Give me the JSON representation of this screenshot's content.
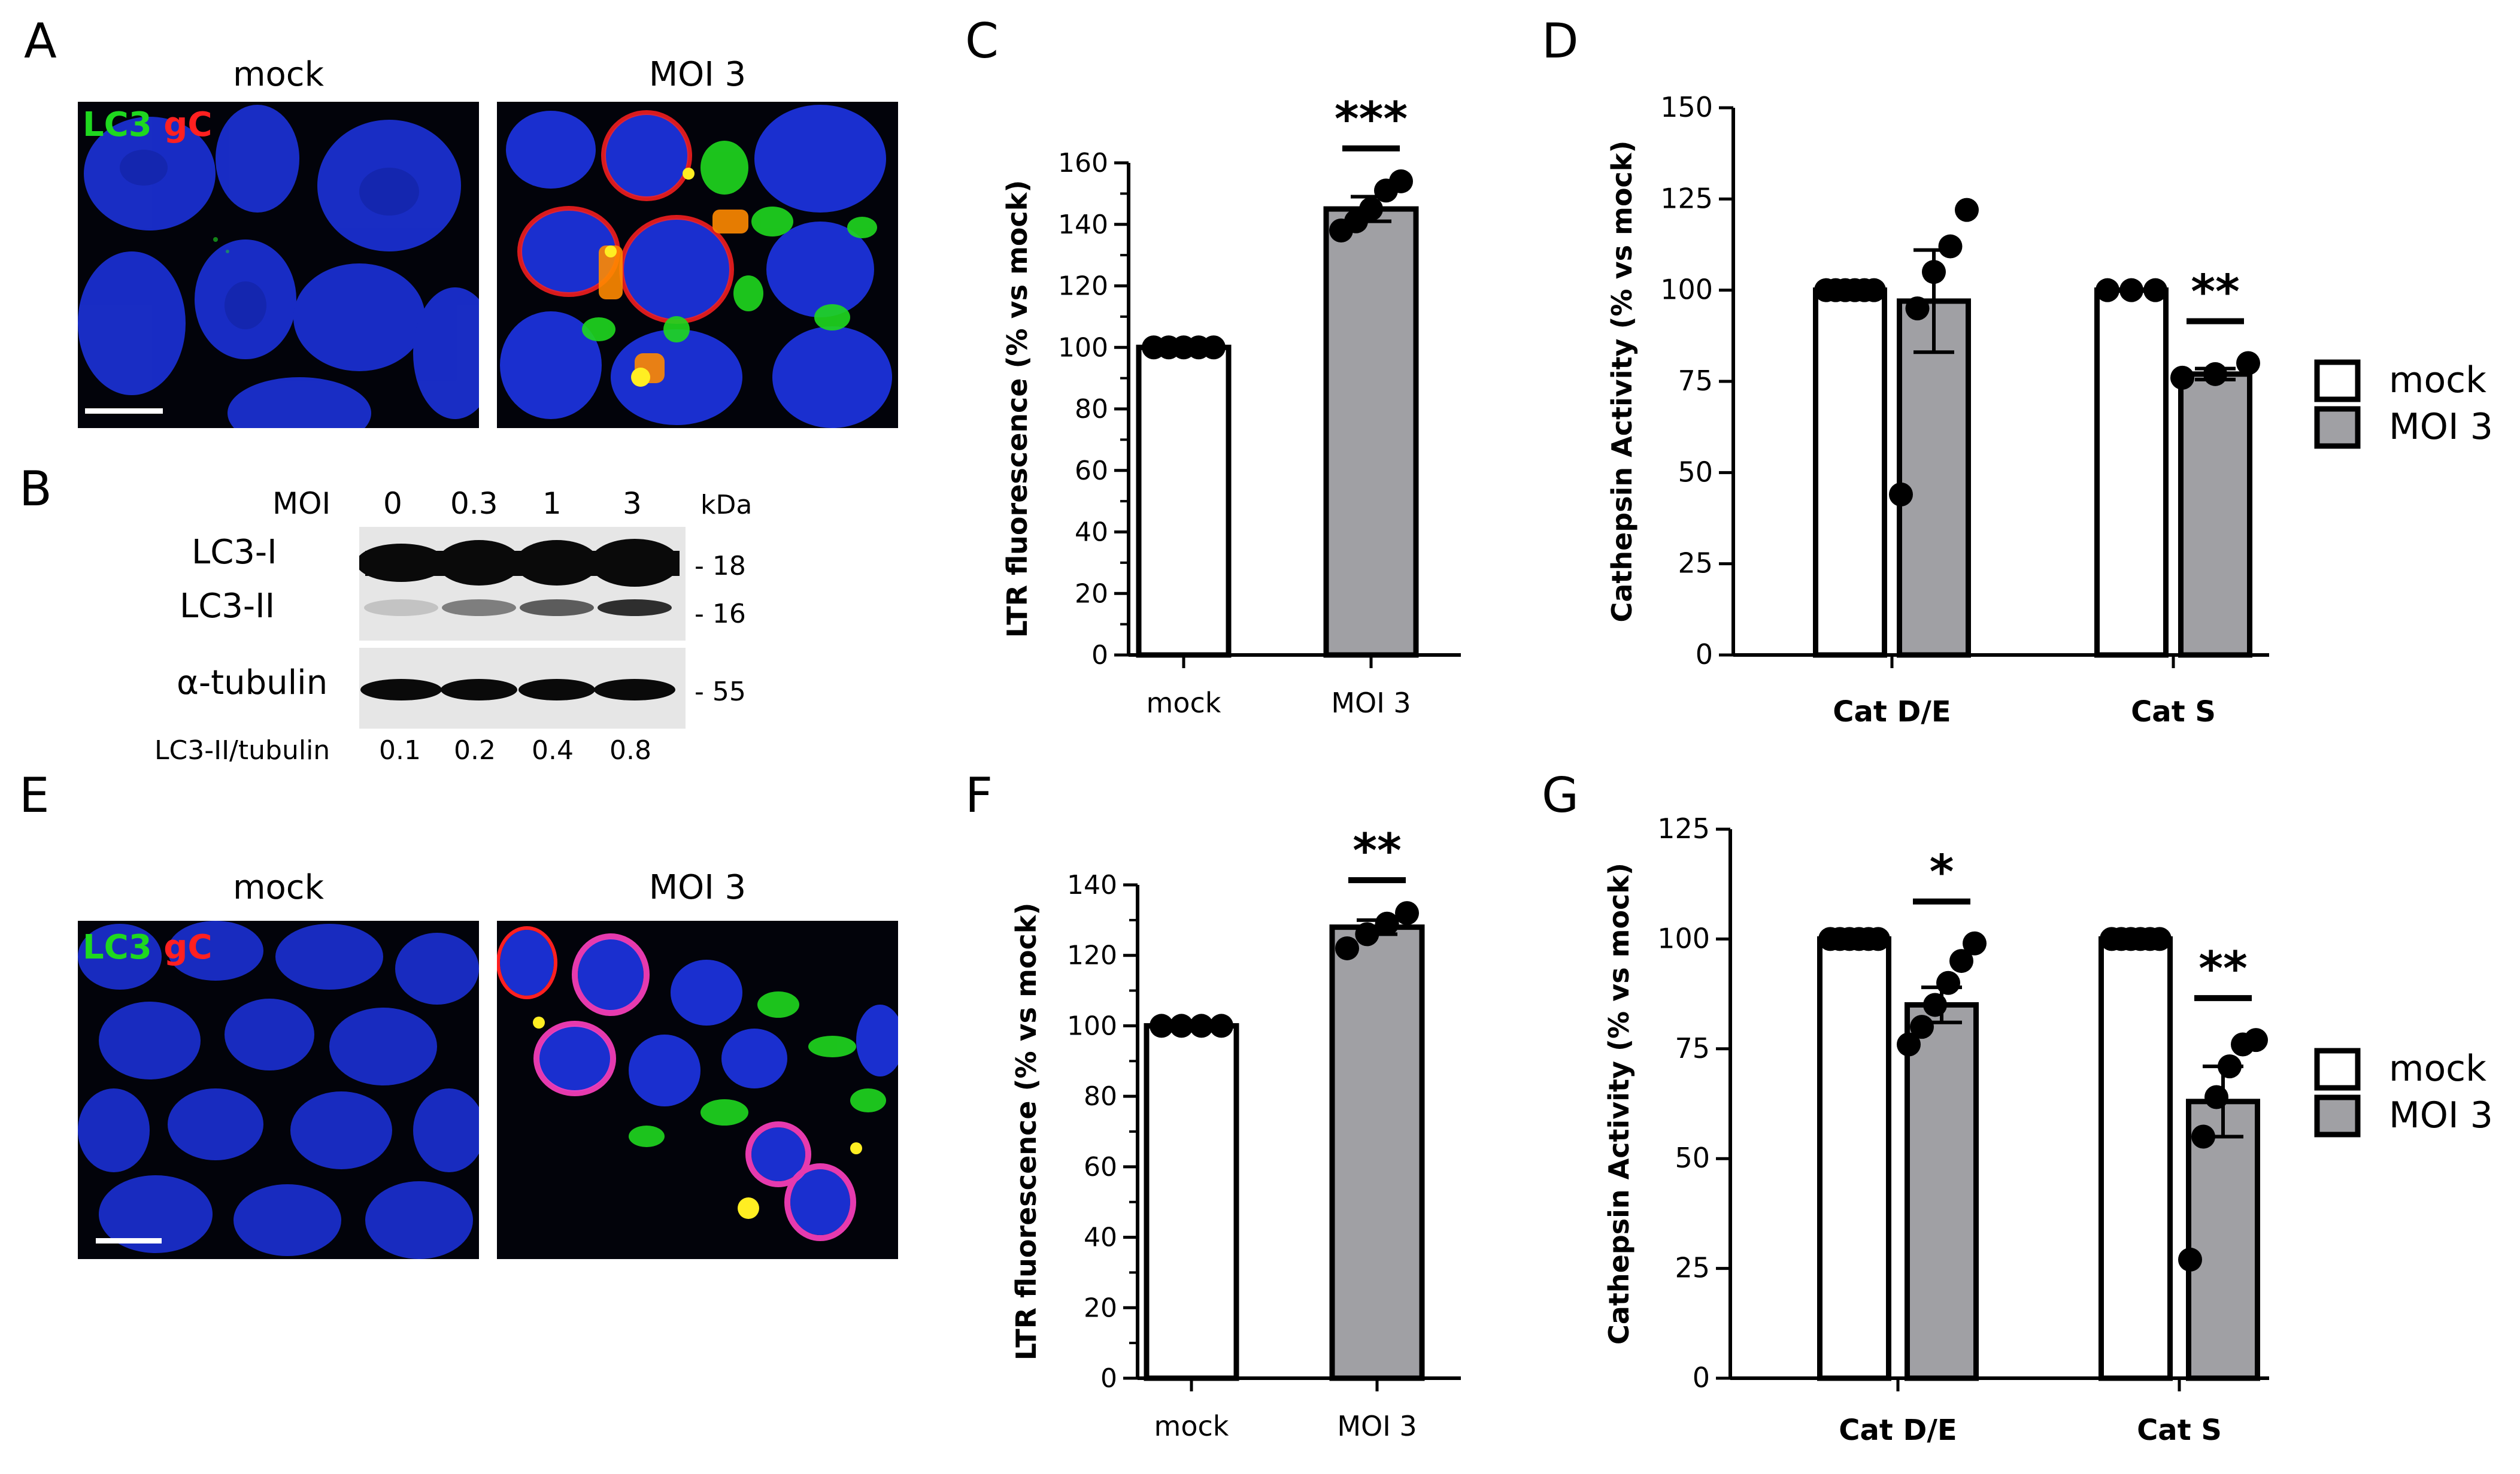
{
  "panels": {
    "A": {
      "label": "A",
      "titles": [
        "mock",
        "MOI 3"
      ],
      "channels": {
        "green": "LC3",
        "red": "gC"
      }
    },
    "B": {
      "label": "B",
      "moi_label": "MOI",
      "moi_values": [
        "0",
        "0.3",
        "1",
        "3"
      ],
      "kda_label": "kDa",
      "bands": {
        "lc3_1": "LC3-I",
        "lc3_2": "LC3-II",
        "tubulin": "α-tubulin"
      },
      "markers": [
        "- 18",
        "- 16",
        "- 55"
      ],
      "ratio_label": "LC3-II/tubulin",
      "ratios": [
        "0.1",
        "0.2",
        "0.4",
        "0.8"
      ],
      "lc3_2_intensity": [
        0.15,
        0.45,
        0.6,
        0.8
      ]
    },
    "E": {
      "label": "E",
      "titles": [
        "mock",
        "MOI 3"
      ],
      "channels": {
        "green": "LC3",
        "red": "gC"
      }
    }
  },
  "legend": {
    "mock": "mock",
    "moi3": "MOI 3"
  },
  "colors": {
    "mock": "#ffffff",
    "moi3": "#a0a0a4",
    "nucleus": "#1a2fcf",
    "gc": "#ff2020",
    "lc3": "#1fd81f"
  },
  "chart_data": [
    {
      "panel": "C",
      "type": "bar",
      "ylabel": "LTR fluorescence (% vs mock)",
      "ylim": [
        0,
        160
      ],
      "yticks": [
        0,
        20,
        40,
        60,
        80,
        100,
        120,
        140,
        160
      ],
      "categories": [
        "mock",
        "MOI 3"
      ],
      "values": [
        100,
        145
      ],
      "errors": [
        0,
        4
      ],
      "points": [
        [
          100,
          100,
          100,
          100,
          100
        ],
        [
          138,
          141,
          145,
          151,
          154
        ]
      ],
      "significance": [
        {
          "category": "MOI 3",
          "label": "***"
        }
      ]
    },
    {
      "panel": "D",
      "type": "bar",
      "ylabel": "Cathepsin Activity (% vs mock)",
      "ylim": [
        0,
        150
      ],
      "yticks": [
        0,
        25,
        50,
        75,
        100,
        125,
        150
      ],
      "categories": [
        "Cat D/E",
        "Cat S"
      ],
      "series": [
        {
          "name": "mock",
          "values": [
            100,
            100
          ],
          "errors": [
            0,
            0
          ],
          "points": [
            [
              100,
              100,
              100,
              100,
              100,
              100
            ],
            [
              100,
              100,
              100
            ]
          ]
        },
        {
          "name": "MOI 3",
          "values": [
            97,
            77
          ],
          "errors": [
            14,
            1.5
          ],
          "points": [
            [
              44,
              95,
              105,
              112,
              122
            ],
            [
              76,
              77,
              80
            ]
          ]
        }
      ],
      "significance": [
        {
          "category": "Cat S",
          "label": "**"
        }
      ]
    },
    {
      "panel": "F",
      "type": "bar",
      "ylabel": "LTR fluorescence (% vs mock)",
      "ylim": [
        0,
        140
      ],
      "yticks": [
        0,
        20,
        40,
        60,
        80,
        100,
        120,
        140
      ],
      "categories": [
        "mock",
        "MOI 3"
      ],
      "values": [
        100,
        128
      ],
      "errors": [
        0,
        2
      ],
      "points": [
        [
          100,
          100,
          100,
          100
        ],
        [
          122,
          126,
          129,
          132
        ]
      ],
      "significance": [
        {
          "category": "MOI 3",
          "label": "**"
        }
      ]
    },
    {
      "panel": "G",
      "type": "bar",
      "ylabel": "Cathepsin Activity (% vs mock)",
      "ylim": [
        0,
        125
      ],
      "yticks": [
        0,
        25,
        50,
        75,
        100,
        125
      ],
      "categories": [
        "Cat D/E",
        "Cat S"
      ],
      "series": [
        {
          "name": "mock",
          "values": [
            100,
            100
          ],
          "errors": [
            0,
            0
          ],
          "points": [
            [
              100,
              100,
              100,
              100,
              100,
              100
            ],
            [
              100,
              100,
              100,
              100,
              100,
              100
            ]
          ]
        },
        {
          "name": "MOI 3",
          "values": [
            85,
            63
          ],
          "errors": [
            4,
            8
          ],
          "points": [
            [
              76,
              80,
              85,
              90,
              95,
              99
            ],
            [
              27,
              55,
              64,
              71,
              76,
              77
            ]
          ]
        }
      ],
      "significance": [
        {
          "category": "Cat D/E",
          "label": "*"
        },
        {
          "category": "Cat S",
          "label": "**"
        }
      ]
    }
  ]
}
